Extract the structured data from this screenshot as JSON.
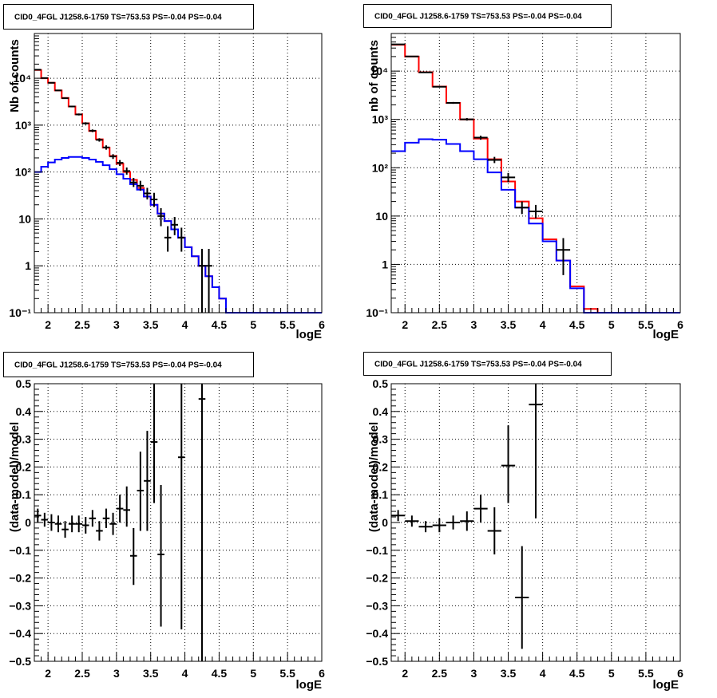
{
  "chart_data": [
    {
      "type": "line",
      "title": "CID0_4FGL J1258.6-1759 TS=753.53 PS=-0.04 PS=-0.04",
      "xlabel": "logE",
      "ylabel": "Nb of counts",
      "log_y": true,
      "xlim": [
        1.8,
        6.0
      ],
      "ylim": [
        0.1,
        90000
      ],
      "grid": true,
      "x_ticks": [
        "2",
        "2.5",
        "3",
        "3.5",
        "4",
        "4.5",
        "5",
        "5.5",
        "6"
      ],
      "y_ticks": [
        "10⁻¹",
        "1",
        "10",
        "10²",
        "10³",
        "10⁴"
      ],
      "bin_edges": [
        1.8,
        1.9,
        2.0,
        2.1,
        2.2,
        2.3,
        2.4,
        2.5,
        2.6,
        2.7,
        2.8,
        2.9,
        3.0,
        3.1,
        3.2,
        3.3,
        3.4,
        3.5,
        3.6,
        3.7,
        3.8,
        3.9,
        4.0,
        4.1,
        4.2,
        4.3,
        4.4,
        4.5,
        4.6,
        4.7,
        4.8,
        4.9,
        5.0,
        5.1,
        5.2,
        5.3,
        5.4,
        5.5,
        5.6,
        5.7,
        5.8,
        5.9,
        6.0
      ],
      "series": [
        {
          "color": "#ff0000",
          "values": [
            15000,
            10000,
            8000,
            5500,
            3800,
            2500,
            1700,
            1100,
            750,
            500,
            330,
            220,
            150,
            100,
            68,
            46,
            30,
            20,
            13,
            9,
            6,
            4,
            2.5,
            1.6,
            1.0,
            0.6,
            0.35,
            0.2,
            0.1,
            0.1,
            0.1,
            0.1,
            0.1,
            0.1,
            0.1,
            0.1,
            0.1,
            0.1,
            0.1,
            0.1,
            0.1,
            0.1
          ]
        },
        {
          "color": "#0000ff",
          "values": [
            100,
            130,
            160,
            185,
            200,
            210,
            210,
            200,
            185,
            165,
            140,
            115,
            90,
            72,
            55,
            42,
            30,
            20,
            13,
            9,
            6,
            4,
            2.5,
            1.6,
            1.0,
            0.6,
            0.35,
            0.2,
            0.1,
            0.1,
            0.1,
            0.1,
            0.1,
            0.1,
            0.1,
            0.1,
            0.1,
            0.1,
            0.1,
            0.1,
            0.1,
            0.1
          ]
        }
      ],
      "points": [
        {
          "x": 1.85,
          "y": 15200,
          "dx": 0.05,
          "ylo": 14900,
          "yhi": 15500
        },
        {
          "x": 1.95,
          "y": 10100,
          "dx": 0.05,
          "ylo": 9900,
          "yhi": 10300
        },
        {
          "x": 2.05,
          "y": 8000,
          "dx": 0.05,
          "ylo": 7800,
          "yhi": 8200
        },
        {
          "x": 2.15,
          "y": 5500,
          "dx": 0.05,
          "ylo": 5350,
          "yhi": 5650
        },
        {
          "x": 2.25,
          "y": 3750,
          "dx": 0.05,
          "ylo": 3630,
          "yhi": 3870
        },
        {
          "x": 2.35,
          "y": 2500,
          "dx": 0.05,
          "ylo": 2400,
          "yhi": 2600
        },
        {
          "x": 2.45,
          "y": 1690,
          "dx": 0.05,
          "ylo": 1610,
          "yhi": 1770
        },
        {
          "x": 2.55,
          "y": 1090,
          "dx": 0.05,
          "ylo": 1030,
          "yhi": 1150
        },
        {
          "x": 2.65,
          "y": 760,
          "dx": 0.05,
          "ylo": 710,
          "yhi": 810
        },
        {
          "x": 2.75,
          "y": 485,
          "dx": 0.05,
          "ylo": 445,
          "yhi": 525
        },
        {
          "x": 2.85,
          "y": 335,
          "dx": 0.05,
          "ylo": 300,
          "yhi": 370
        },
        {
          "x": 2.95,
          "y": 215,
          "dx": 0.05,
          "ylo": 190,
          "yhi": 240
        },
        {
          "x": 3.05,
          "y": 157,
          "dx": 0.05,
          "ylo": 135,
          "yhi": 180
        },
        {
          "x": 3.15,
          "y": 105,
          "dx": 0.05,
          "ylo": 88,
          "yhi": 125
        },
        {
          "x": 3.25,
          "y": 60,
          "dx": 0.05,
          "ylo": 48,
          "yhi": 75
        },
        {
          "x": 3.35,
          "y": 51,
          "dx": 0.05,
          "ylo": 40,
          "yhi": 65
        },
        {
          "x": 3.45,
          "y": 35,
          "dx": 0.05,
          "ylo": 26,
          "yhi": 46
        },
        {
          "x": 3.55,
          "y": 26,
          "dx": 0.05,
          "ylo": 18,
          "yhi": 36
        },
        {
          "x": 3.65,
          "y": 11.5,
          "dx": 0.05,
          "ylo": 7,
          "yhi": 17
        },
        {
          "x": 3.75,
          "y": 4,
          "dx": 0.05,
          "ylo": 2,
          "yhi": 7
        },
        {
          "x": 3.85,
          "y": 7.5,
          "dx": 0.05,
          "ylo": 4.5,
          "yhi": 11
        },
        {
          "x": 3.95,
          "y": 4,
          "dx": 0.05,
          "ylo": 2,
          "yhi": 6.5
        },
        {
          "x": 4.25,
          "y": 1,
          "dx": 0.05,
          "ylo": 0.1,
          "yhi": 2.3
        },
        {
          "x": 4.35,
          "y": 1,
          "dx": 0.05,
          "ylo": 0.1,
          "yhi": 2.3
        }
      ]
    },
    {
      "type": "line",
      "title": "CID0_4FGL J1258.6-1759 TS=753.53 PS=-0.04 PS=-0.04",
      "xlabel": "logE",
      "ylabel": "nb of counts",
      "log_y": true,
      "xlim": [
        1.8,
        6.0
      ],
      "ylim": [
        0.1,
        60000
      ],
      "grid": true,
      "x_ticks": [
        "2",
        "2.5",
        "3",
        "3.5",
        "4",
        "4.5",
        "5",
        "5.5",
        "6"
      ],
      "y_ticks": [
        "10⁻¹",
        "1",
        "10",
        "10²",
        "10³",
        "10⁴"
      ],
      "bin_edges": [
        1.8,
        2.0,
        2.2,
        2.4,
        2.6,
        2.8,
        3.0,
        3.2,
        3.4,
        3.6,
        3.8,
        4.0,
        4.2,
        4.4,
        4.6,
        4.8,
        5.0,
        5.2,
        5.4,
        5.6,
        5.8,
        6.0
      ],
      "series": [
        {
          "color": "#ff0000",
          "values": [
            35000,
            20000,
            9500,
            4800,
            2200,
            1000,
            400,
            150,
            52,
            20,
            9,
            3.3,
            1.2,
            0.35,
            0.12,
            0.1,
            0.1,
            0.1,
            0.1,
            0.1,
            0.1
          ]
        },
        {
          "color": "#0000ff",
          "values": [
            220,
            330,
            390,
            380,
            310,
            220,
            150,
            80,
            35,
            15,
            7,
            3,
            1.2,
            0.32,
            0.1,
            0.1,
            0.1,
            0.1,
            0.1,
            0.1,
            0.1
          ]
        }
      ],
      "points": [
        {
          "x": 1.9,
          "y": 35800,
          "dx": 0.1,
          "ylo": 35400,
          "yhi": 36200
        },
        {
          "x": 2.1,
          "y": 20100,
          "dx": 0.1,
          "ylo": 19800,
          "yhi": 20400
        },
        {
          "x": 2.3,
          "y": 9400,
          "dx": 0.1,
          "ylo": 9200,
          "yhi": 9600
        },
        {
          "x": 2.5,
          "y": 4750,
          "dx": 0.1,
          "ylo": 4600,
          "yhi": 4900
        },
        {
          "x": 2.7,
          "y": 2200,
          "dx": 0.1,
          "ylo": 2100,
          "yhi": 2300
        },
        {
          "x": 2.9,
          "y": 1005,
          "dx": 0.1,
          "ylo": 945,
          "yhi": 1065
        },
        {
          "x": 3.1,
          "y": 420,
          "dx": 0.1,
          "ylo": 380,
          "yhi": 460
        },
        {
          "x": 3.3,
          "y": 145,
          "dx": 0.1,
          "ylo": 125,
          "yhi": 168
        },
        {
          "x": 3.5,
          "y": 63,
          "dx": 0.1,
          "ylo": 50,
          "yhi": 78
        },
        {
          "x": 3.7,
          "y": 15,
          "dx": 0.1,
          "ylo": 11,
          "yhi": 20
        },
        {
          "x": 3.9,
          "y": 12.5,
          "dx": 0.1,
          "ylo": 9,
          "yhi": 17
        },
        {
          "x": 4.3,
          "y": 2,
          "dx": 0.1,
          "ylo": 0.6,
          "yhi": 3.5
        }
      ]
    },
    {
      "type": "scatter",
      "title": "CID0_4FGL J1258.6-1759 TS=753.53 PS=-0.04 PS=-0.04",
      "xlabel": "logE",
      "ylabel": "(data-model)/model",
      "log_y": false,
      "xlim": [
        1.8,
        6.0
      ],
      "ylim": [
        -0.5,
        0.5
      ],
      "grid": true,
      "x_ticks": [
        "2",
        "2.5",
        "3",
        "3.5",
        "4",
        "4.5",
        "5",
        "5.5",
        "6"
      ],
      "y_ticks": [
        "−0.5",
        "−0.4",
        "−0.3",
        "−0.2",
        "−0.1",
        "0",
        "0.1",
        "0.2",
        "0.3",
        "0.4",
        "0.5"
      ],
      "points": [
        {
          "x": 1.85,
          "y": 0.025,
          "dx": 0.05,
          "ylo": 0.0,
          "yhi": 0.05
        },
        {
          "x": 1.95,
          "y": 0.01,
          "dx": 0.05,
          "ylo": -0.015,
          "yhi": 0.035
        },
        {
          "x": 2.05,
          "y": 0.0,
          "dx": 0.05,
          "ylo": -0.03,
          "yhi": 0.03
        },
        {
          "x": 2.15,
          "y": -0.005,
          "dx": 0.05,
          "ylo": -0.035,
          "yhi": 0.025
        },
        {
          "x": 2.25,
          "y": -0.025,
          "dx": 0.05,
          "ylo": -0.055,
          "yhi": 0.005
        },
        {
          "x": 2.35,
          "y": -0.005,
          "dx": 0.05,
          "ylo": -0.035,
          "yhi": 0.025
        },
        {
          "x": 2.45,
          "y": -0.005,
          "dx": 0.05,
          "ylo": -0.035,
          "yhi": 0.025
        },
        {
          "x": 2.55,
          "y": -0.01,
          "dx": 0.05,
          "ylo": -0.04,
          "yhi": 0.02
        },
        {
          "x": 2.65,
          "y": 0.015,
          "dx": 0.05,
          "ylo": -0.015,
          "yhi": 0.045
        },
        {
          "x": 2.75,
          "y": -0.03,
          "dx": 0.05,
          "ylo": -0.065,
          "yhi": 0.005
        },
        {
          "x": 2.85,
          "y": 0.015,
          "dx": 0.05,
          "ylo": -0.02,
          "yhi": 0.05
        },
        {
          "x": 2.95,
          "y": -0.005,
          "dx": 0.05,
          "ylo": -0.045,
          "yhi": 0.035
        },
        {
          "x": 3.05,
          "y": 0.05,
          "dx": 0.05,
          "ylo": 0.0,
          "yhi": 0.1
        },
        {
          "x": 3.15,
          "y": 0.045,
          "dx": 0.05,
          "ylo": -0.015,
          "yhi": 0.13
        },
        {
          "x": 3.25,
          "y": -0.12,
          "dx": 0.05,
          "ylo": -0.225,
          "yhi": -0.02
        },
        {
          "x": 3.35,
          "y": 0.115,
          "dx": 0.05,
          "ylo": -0.03,
          "yhi": 0.255
        },
        {
          "x": 3.45,
          "y": 0.15,
          "dx": 0.05,
          "ylo": -0.03,
          "yhi": 0.33
        },
        {
          "x": 3.55,
          "y": 0.29,
          "dx": 0.05,
          "ylo": 0.07,
          "yhi": 0.5
        },
        {
          "x": 3.65,
          "y": -0.115,
          "dx": 0.05,
          "ylo": -0.375,
          "yhi": 0.135
        },
        {
          "x": 3.95,
          "y": 0.235,
          "dx": 0.05,
          "ylo": -0.385,
          "yhi": 0.5
        },
        {
          "x": 4.25,
          "y": 0.445,
          "dx": 0.05,
          "ylo": -0.5,
          "yhi": 0.5
        }
      ]
    },
    {
      "type": "scatter",
      "title": "CID0_4FGL J1258.6-1759 TS=753.53 PS=-0.04 PS=-0.04",
      "xlabel": "logE",
      "ylabel": "(data-model)/model",
      "log_y": false,
      "xlim": [
        1.8,
        6.0
      ],
      "ylim": [
        -0.5,
        0.5
      ],
      "grid": true,
      "x_ticks": [
        "2",
        "2.5",
        "3",
        "3.5",
        "4",
        "4.5",
        "5",
        "5.5",
        "6"
      ],
      "y_ticks": [
        "−0.5",
        "−0.4",
        "−0.3",
        "−0.2",
        "−0.1",
        "0",
        "0.1",
        "0.2",
        "0.3",
        "0.4",
        "0.5"
      ],
      "points": [
        {
          "x": 1.9,
          "y": 0.025,
          "dx": 0.1,
          "ylo": 0.005,
          "yhi": 0.045
        },
        {
          "x": 2.1,
          "y": 0.005,
          "dx": 0.1,
          "ylo": -0.015,
          "yhi": 0.025
        },
        {
          "x": 2.3,
          "y": -0.015,
          "dx": 0.1,
          "ylo": -0.035,
          "yhi": 0.005
        },
        {
          "x": 2.5,
          "y": -0.01,
          "dx": 0.1,
          "ylo": -0.035,
          "yhi": 0.015
        },
        {
          "x": 2.7,
          "y": 0.0,
          "dx": 0.1,
          "ylo": -0.025,
          "yhi": 0.025
        },
        {
          "x": 2.9,
          "y": 0.005,
          "dx": 0.1,
          "ylo": -0.03,
          "yhi": 0.04
        },
        {
          "x": 3.1,
          "y": 0.05,
          "dx": 0.1,
          "ylo": 0.0,
          "yhi": 0.1
        },
        {
          "x": 3.3,
          "y": -0.03,
          "dx": 0.1,
          "ylo": -0.115,
          "yhi": 0.055
        },
        {
          "x": 3.5,
          "y": 0.205,
          "dx": 0.1,
          "ylo": 0.07,
          "yhi": 0.35
        },
        {
          "x": 3.7,
          "y": -0.27,
          "dx": 0.1,
          "ylo": -0.455,
          "yhi": -0.085
        },
        {
          "x": 3.9,
          "y": 0.425,
          "dx": 0.1,
          "ylo": 0.015,
          "yhi": 0.5
        }
      ]
    }
  ]
}
